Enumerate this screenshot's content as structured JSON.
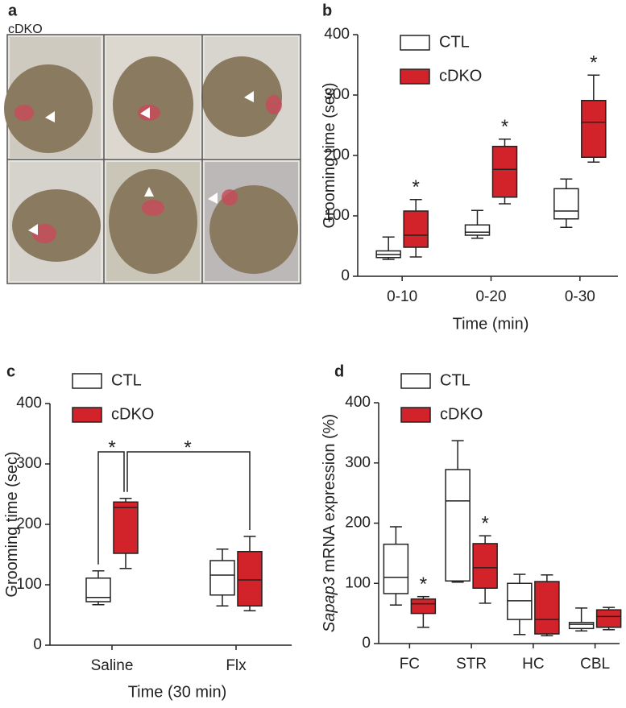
{
  "photo_panel": {
    "label": "a",
    "title": "cDKO"
  },
  "chart_data": [
    {
      "type": "box",
      "panel_label": "b",
      "xlabel": "Time (min)",
      "ylabel": "Grooming time (sec)",
      "categories": [
        "0-10",
        "0-20",
        "0-30"
      ],
      "ylim": [
        0,
        400
      ],
      "yticks": [
        0,
        100,
        200,
        300,
        400
      ],
      "series": [
        {
          "name": "CTL",
          "color": "#ffffff",
          "whisker_low": [
            28,
            63,
            81
          ],
          "q1": [
            31,
            68,
            95
          ],
          "median": [
            36,
            73,
            108
          ],
          "q3": [
            42,
            85,
            145
          ],
          "whisker_high": [
            65,
            109,
            161
          ]
        },
        {
          "name": "cDKO",
          "color": "#d2232a",
          "whisker_low": [
            32,
            120,
            189
          ],
          "q1": [
            48,
            131,
            197
          ],
          "median": [
            68,
            177,
            255
          ],
          "q3": [
            108,
            215,
            291
          ],
          "whisker_high": [
            127,
            227,
            333
          ],
          "annotations": [
            "*",
            "*",
            "*"
          ]
        }
      ]
    },
    {
      "type": "box",
      "panel_label": "c",
      "xlabel": "Time (30 min)",
      "ylabel": "Grooming time (sec)",
      "categories": [
        "Saline",
        "Flx"
      ],
      "ylim": [
        0,
        400
      ],
      "yticks": [
        0,
        100,
        200,
        300,
        400
      ],
      "brackets": [
        "*",
        "*"
      ],
      "series": [
        {
          "name": "CTL",
          "color": "#ffffff",
          "whisker_low": [
            67,
            65
          ],
          "q1": [
            72,
            83
          ],
          "median": [
            79,
            116
          ],
          "q3": [
            111,
            140
          ],
          "whisker_high": [
            123,
            159
          ]
        },
        {
          "name": "cDKO",
          "color": "#d2232a",
          "whisker_low": [
            127,
            57
          ],
          "q1": [
            152,
            65
          ],
          "median": [
            228,
            108
          ],
          "q3": [
            237,
            155
          ],
          "whisker_high": [
            243,
            180
          ]
        }
      ]
    },
    {
      "type": "box",
      "panel_label": "d",
      "ylabel_italic": "Sapap3",
      "ylabel": "mRNA expression (%)",
      "categories": [
        "FC",
        "STR",
        "HC",
        "CBL"
      ],
      "ylim": [
        0,
        400
      ],
      "yticks": [
        0,
        100,
        200,
        300,
        400
      ],
      "series": [
        {
          "name": "CTL",
          "color": "#ffffff",
          "whisker_low": [
            64,
            102,
            15,
            21
          ],
          "q1": [
            83,
            104,
            40,
            25
          ],
          "median": [
            110,
            237,
            71,
            32
          ],
          "q3": [
            165,
            289,
            100,
            35
          ],
          "whisker_high": [
            194,
            337,
            115,
            59
          ]
        },
        {
          "name": "cDKO",
          "color": "#d2232a",
          "whisker_low": [
            27,
            67,
            13,
            23
          ],
          "q1": [
            50,
            92,
            16,
            27
          ],
          "median": [
            66,
            126,
            40,
            45
          ],
          "q3": [
            74,
            166,
            103,
            56
          ],
          "whisker_high": [
            78,
            179,
            114,
            60
          ],
          "annotations": [
            "*",
            "*",
            null,
            null
          ]
        }
      ]
    }
  ]
}
